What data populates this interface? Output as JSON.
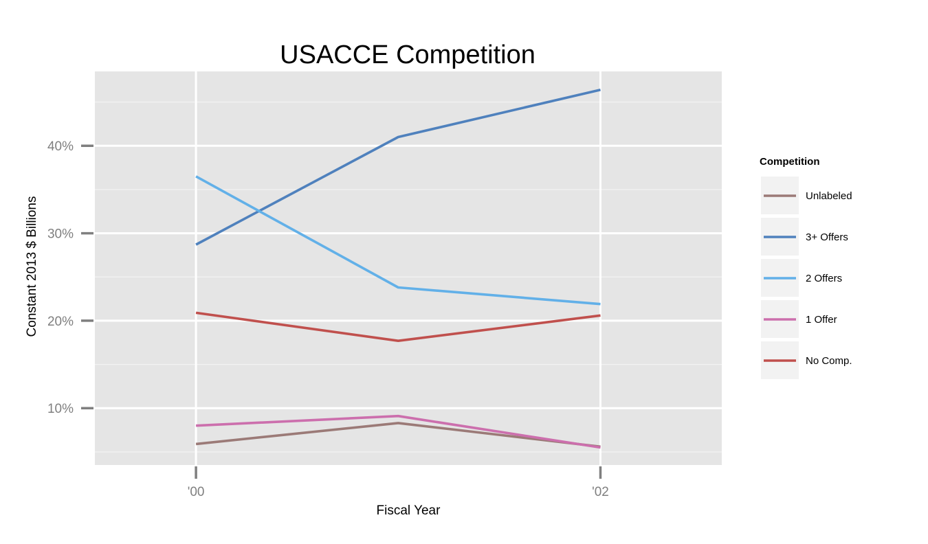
{
  "chart_data": {
    "type": "line",
    "title": "USACCE Competition",
    "xlabel": "Fiscal Year",
    "ylabel": "Constant 2013 $ Billions",
    "x": [
      2000,
      2001,
      2002
    ],
    "x_tick_values": [
      2000,
      2002
    ],
    "x_tick_labels": [
      "'00",
      "'02"
    ],
    "xlim": [
      1999.5,
      2002.6
    ],
    "y_tick_values": [
      10,
      20,
      30,
      40
    ],
    "y_tick_labels": [
      "10%",
      "20%",
      "30%",
      "40%"
    ],
    "ylim": [
      3.5,
      48.5
    ],
    "grid": true,
    "legend": {
      "title": "Competition",
      "position": "right"
    },
    "series": [
      {
        "name": "Unlabeled",
        "color": "#9b7a77",
        "values": [
          5.9,
          8.3,
          5.6
        ]
      },
      {
        "name": "3+ Offers",
        "color": "#4f81bd",
        "values": [
          28.7,
          41.0,
          46.4
        ]
      },
      {
        "name": "2 Offers",
        "color": "#62b0e8",
        "values": [
          36.5,
          23.8,
          21.9
        ]
      },
      {
        "name": "1 Offer",
        "color": "#cc6fad",
        "values": [
          8.0,
          9.1,
          5.5
        ]
      },
      {
        "name": "No Comp.",
        "color": "#c0504d",
        "values": [
          20.9,
          17.7,
          20.6
        ]
      }
    ]
  }
}
